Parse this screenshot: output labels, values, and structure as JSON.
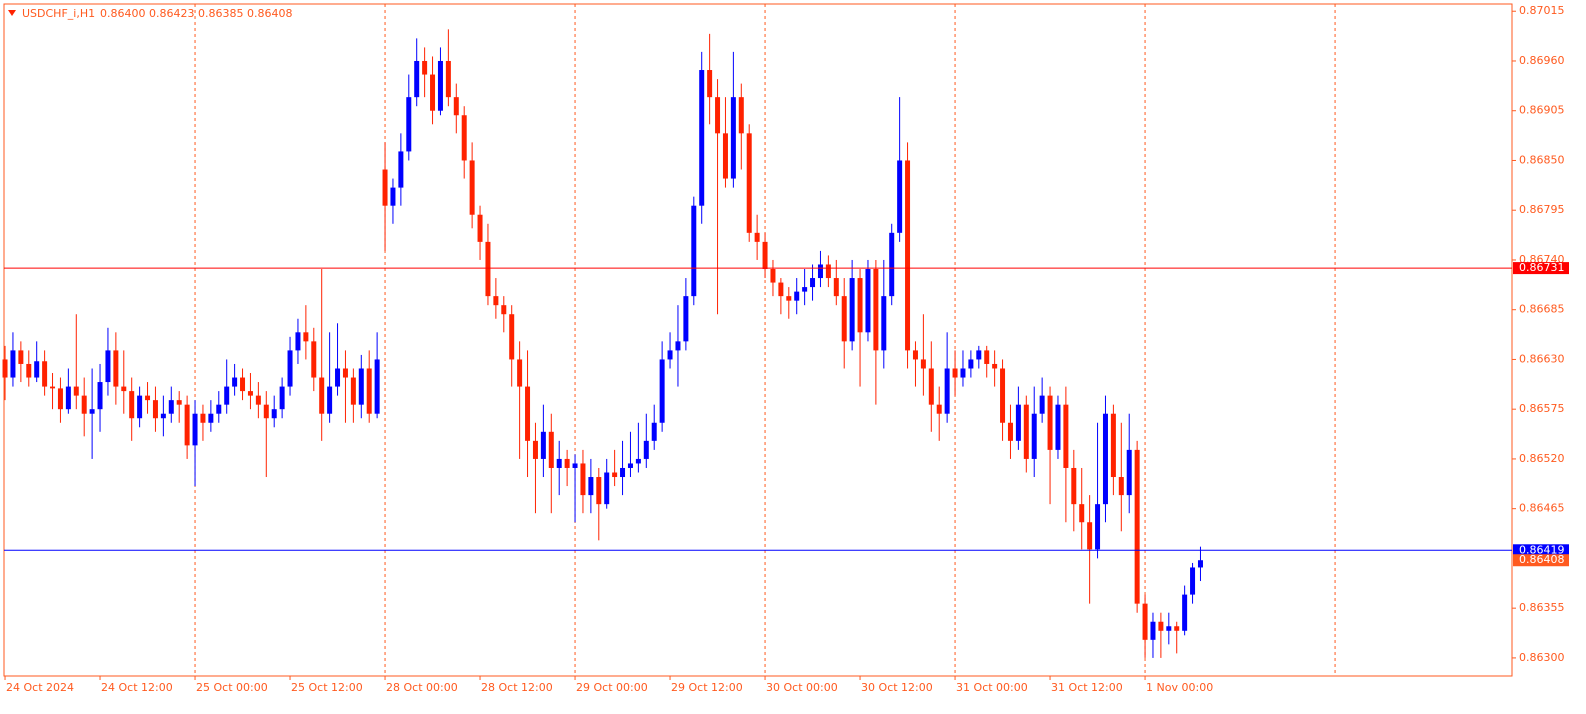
{
  "chart_data": {
    "type": "candlestick",
    "header": {
      "symbol": "USDCHF_i,H1",
      "quote": [
        "0.86400",
        "0.86423",
        "0.86385",
        "0.86408"
      ]
    },
    "up_color": "#0000ff",
    "down_color": "#ff2200",
    "axis_color": "#ff5a1f",
    "grid": true,
    "xlim": [
      -0.13,
      190.35
    ],
    "ylim": [
      0.8628,
      0.87023
    ],
    "xticks": [
      {
        "value": 0,
        "label": "24 Oct 2024"
      },
      {
        "value": 12,
        "label": "24 Oct 12:00"
      },
      {
        "value": 24,
        "label": "25 Oct 00:00"
      },
      {
        "value": 36,
        "label": "25 Oct 12:00"
      },
      {
        "value": 48,
        "label": "28 Oct 00:00"
      },
      {
        "value": 60,
        "label": "28 Oct 12:00"
      },
      {
        "value": 72,
        "label": "29 Oct 00:00"
      },
      {
        "value": 84,
        "label": "29 Oct 12:00"
      },
      {
        "value": 96,
        "label": "30 Oct 00:00"
      },
      {
        "value": 108,
        "label": "30 Oct 12:00"
      },
      {
        "value": 120,
        "label": "31 Oct 00:00"
      },
      {
        "value": 132,
        "label": "31 Oct 12:00"
      },
      {
        "value": 144,
        "label": "1 Nov 00:00"
      }
    ],
    "xgrid": [
      24,
      48,
      72,
      96,
      120,
      144,
      168
    ],
    "yticks": [
      {
        "value": 0.87015,
        "label": "0.87015"
      },
      {
        "value": 0.8696,
        "label": "0.86960"
      },
      {
        "value": 0.86905,
        "label": "0.86905"
      },
      {
        "value": 0.8685,
        "label": "0.86850"
      },
      {
        "value": 0.86795,
        "label": "0.86795"
      },
      {
        "value": 0.8674,
        "label": "0.86740"
      },
      {
        "value": 0.86685,
        "label": "0.86685"
      },
      {
        "value": 0.8663,
        "label": "0.86630"
      },
      {
        "value": 0.86575,
        "label": "0.86575"
      },
      {
        "value": 0.8652,
        "label": "0.86520"
      },
      {
        "value": 0.86465,
        "label": "0.86465"
      },
      {
        "value": 0.86355,
        "label": "0.86355"
      },
      {
        "value": 0.863,
        "label": "0.86300"
      }
    ],
    "hlines": [
      {
        "value": 0.86731,
        "label": "0.86731",
        "color": "#ff0000"
      },
      {
        "value": 0.86419,
        "label": "0.86419",
        "color": "#0000ff"
      }
    ],
    "price_marker": {
      "value": 0.86408,
      "label": "0.86408",
      "color": "#ff5a1f"
    },
    "open": [
      0.8663,
      0.8661,
      0.8664,
      0.86625,
      0.8661,
      0.86628,
      0.866,
      0.86598,
      0.86575,
      0.866,
      0.8659,
      0.8657,
      0.86575,
      0.86605,
      0.8664,
      0.866,
      0.86595,
      0.86565,
      0.8659,
      0.86585,
      0.86565,
      0.8657,
      0.86585,
      0.8658,
      0.86535,
      0.8657,
      0.8656,
      0.8657,
      0.8658,
      0.866,
      0.8661,
      0.86595,
      0.8659,
      0.8658,
      0.86565,
      0.86575,
      0.866,
      0.8664,
      0.8666,
      0.8665,
      0.8661,
      0.8657,
      0.866,
      0.8662,
      0.8661,
      0.8658,
      0.8662,
      0.8657,
      0.8684,
      0.868,
      0.8682,
      0.8686,
      0.8692,
      0.8696,
      0.86945,
      0.86905,
      0.8696,
      0.8692,
      0.869,
      0.8685,
      0.8679,
      0.8676,
      0.867,
      0.8669,
      0.8668,
      0.8663,
      0.866,
      0.8654,
      0.8652,
      0.8655,
      0.8651,
      0.8652,
      0.8651,
      0.86515,
      0.8648,
      0.865,
      0.8647,
      0.86505,
      0.865,
      0.8651,
      0.86515,
      0.8652,
      0.8654,
      0.8656,
      0.8663,
      0.8664,
      0.8665,
      0.867,
      0.868,
      0.8695,
      0.8692,
      0.8688,
      0.8683,
      0.8692,
      0.8688,
      0.8677,
      0.8676,
      0.8673,
      0.86715,
      0.867,
      0.86695,
      0.86705,
      0.8671,
      0.8672,
      0.86735,
      0.8672,
      0.867,
      0.8665,
      0.8672,
      0.8666,
      0.8673,
      0.8664,
      0.867,
      0.8677,
      0.8685,
      0.8664,
      0.8663,
      0.8662,
      0.8658,
      0.8657,
      0.8662,
      0.8661,
      0.8662,
      0.8663,
      0.8664,
      0.86625,
      0.8662,
      0.8656,
      0.8654,
      0.8658,
      0.8652,
      0.8657,
      0.8659,
      0.8653,
      0.8658,
      0.8651,
      0.8647,
      0.8645,
      0.8642,
      0.8647,
      0.8657,
      0.865,
      0.8648,
      0.8653,
      0.8636,
      0.8632,
      0.8634,
      0.8633,
      0.86335,
      0.8633,
      0.8637,
      0.864
    ],
    "high": [
      0.86645,
      0.8666,
      0.8665,
      0.8664,
      0.8665,
      0.8664,
      0.86615,
      0.8661,
      0.8662,
      0.8668,
      0.8661,
      0.8662,
      0.86625,
      0.86665,
      0.8666,
      0.8664,
      0.8661,
      0.866,
      0.86605,
      0.866,
      0.8659,
      0.866,
      0.86595,
      0.8659,
      0.86585,
      0.8658,
      0.86585,
      0.86595,
      0.8663,
      0.86625,
      0.8662,
      0.86615,
      0.86605,
      0.86595,
      0.8659,
      0.8661,
      0.86655,
      0.86675,
      0.8669,
      0.86665,
      0.8673,
      0.8666,
      0.8667,
      0.8664,
      0.8662,
      0.86635,
      0.8664,
      0.8666,
      0.8687,
      0.8683,
      0.8688,
      0.86945,
      0.86985,
      0.86975,
      0.86965,
      0.86975,
      0.86995,
      0.86935,
      0.8691,
      0.8687,
      0.868,
      0.8678,
      0.8672,
      0.867,
      0.8669,
      0.8665,
      0.8664,
      0.8656,
      0.8658,
      0.8657,
      0.8654,
      0.8653,
      0.86525,
      0.8653,
      0.8652,
      0.8651,
      0.8652,
      0.8653,
      0.8654,
      0.8655,
      0.8656,
      0.8657,
      0.8658,
      0.8665,
      0.8666,
      0.8669,
      0.8672,
      0.8681,
      0.8697,
      0.8699,
      0.8694,
      0.8692,
      0.8697,
      0.86935,
      0.8689,
      0.8679,
      0.8677,
      0.8674,
      0.8672,
      0.8671,
      0.8672,
      0.8673,
      0.86735,
      0.8675,
      0.86745,
      0.8674,
      0.8672,
      0.8674,
      0.8673,
      0.8674,
      0.8674,
      0.8674,
      0.8678,
      0.8692,
      0.8687,
      0.8665,
      0.8668,
      0.8665,
      0.866,
      0.8666,
      0.8664,
      0.8664,
      0.8664,
      0.86645,
      0.86645,
      0.8664,
      0.8663,
      0.8658,
      0.866,
      0.8659,
      0.866,
      0.8661,
      0.866,
      0.8659,
      0.866,
      0.8653,
      0.8651,
      0.8648,
      0.8656,
      0.8659,
      0.8658,
      0.8656,
      0.8657,
      0.8654,
      0.8637,
      0.8635,
      0.8635,
      0.8635,
      0.8634,
      0.8638,
      0.86405,
      0.86423
    ],
    "low": [
      0.86585,
      0.866,
      0.86605,
      0.866,
      0.86605,
      0.8659,
      0.86575,
      0.8656,
      0.8657,
      0.86575,
      0.86545,
      0.8652,
      0.8655,
      0.8659,
      0.8658,
      0.8657,
      0.8654,
      0.86555,
      0.8657,
      0.8655,
      0.86545,
      0.8656,
      0.8656,
      0.8652,
      0.8649,
      0.8654,
      0.8655,
      0.8656,
      0.8657,
      0.8659,
      0.86585,
      0.86575,
      0.86565,
      0.865,
      0.86555,
      0.86565,
      0.8659,
      0.86625,
      0.8663,
      0.86595,
      0.8654,
      0.8656,
      0.8659,
      0.8656,
      0.8656,
      0.86565,
      0.8656,
      0.86565,
      0.8675,
      0.8678,
      0.868,
      0.8685,
      0.8691,
      0.8692,
      0.8689,
      0.869,
      0.8691,
      0.8688,
      0.8683,
      0.86775,
      0.8674,
      0.8669,
      0.86675,
      0.8666,
      0.866,
      0.8652,
      0.865,
      0.8646,
      0.865,
      0.8646,
      0.8648,
      0.8649,
      0.8645,
      0.8646,
      0.8646,
      0.8643,
      0.86465,
      0.8649,
      0.8648,
      0.865,
      0.86505,
      0.8651,
      0.8653,
      0.8655,
      0.8662,
      0.866,
      0.8664,
      0.8669,
      0.8678,
      0.8689,
      0.8668,
      0.8682,
      0.8682,
      0.8684,
      0.8676,
      0.8674,
      0.8672,
      0.867,
      0.8668,
      0.86675,
      0.8668,
      0.8669,
      0.86695,
      0.8671,
      0.8671,
      0.8669,
      0.8662,
      0.8664,
      0.866,
      0.8665,
      0.8658,
      0.8662,
      0.8669,
      0.8676,
      0.8662,
      0.866,
      0.8659,
      0.8655,
      0.8654,
      0.8656,
      0.8659,
      0.866,
      0.8661,
      0.8662,
      0.8661,
      0.866,
      0.8654,
      0.8652,
      0.8653,
      0.86505,
      0.865,
      0.8656,
      0.8647,
      0.8652,
      0.8645,
      0.8644,
      0.8642,
      0.8636,
      0.8641,
      0.8645,
      0.8648,
      0.8644,
      0.8646,
      0.8635,
      0.863,
      0.863,
      0.863,
      0.86315,
      0.86305,
      0.86325,
      0.8636,
      0.86385
    ],
    "close": [
      0.8661,
      0.8664,
      0.86625,
      0.8661,
      0.86628,
      0.866,
      0.86598,
      0.86575,
      0.866,
      0.8659,
      0.8657,
      0.86575,
      0.86605,
      0.8664,
      0.866,
      0.86595,
      0.86565,
      0.8659,
      0.86585,
      0.86565,
      0.8657,
      0.86585,
      0.8658,
      0.86535,
      0.8657,
      0.8656,
      0.8657,
      0.8658,
      0.866,
      0.8661,
      0.86595,
      0.8659,
      0.8658,
      0.86565,
      0.86575,
      0.866,
      0.8664,
      0.8666,
      0.8665,
      0.8661,
      0.8657,
      0.866,
      0.8662,
      0.8661,
      0.8658,
      0.8662,
      0.8657,
      0.8663,
      0.868,
      0.8682,
      0.8686,
      0.8692,
      0.8696,
      0.86945,
      0.86905,
      0.8696,
      0.8692,
      0.869,
      0.8685,
      0.8679,
      0.8676,
      0.867,
      0.8669,
      0.8668,
      0.8663,
      0.866,
      0.8654,
      0.8652,
      0.8655,
      0.8651,
      0.8652,
      0.8651,
      0.86515,
      0.8648,
      0.865,
      0.8647,
      0.86505,
      0.865,
      0.8651,
      0.86515,
      0.8652,
      0.8654,
      0.8656,
      0.8663,
      0.8664,
      0.8665,
      0.867,
      0.868,
      0.8695,
      0.8692,
      0.8688,
      0.8683,
      0.8692,
      0.8688,
      0.8677,
      0.8676,
      0.8673,
      0.86715,
      0.867,
      0.86695,
      0.86705,
      0.8671,
      0.8672,
      0.86735,
      0.8672,
      0.867,
      0.8665,
      0.8672,
      0.8666,
      0.8673,
      0.8664,
      0.867,
      0.8677,
      0.8685,
      0.8664,
      0.8663,
      0.8662,
      0.8658,
      0.8657,
      0.8662,
      0.8661,
      0.8662,
      0.8663,
      0.8664,
      0.86625,
      0.8662,
      0.8656,
      0.8654,
      0.8658,
      0.8652,
      0.8657,
      0.8659,
      0.8653,
      0.8658,
      0.8651,
      0.8647,
      0.8645,
      0.8642,
      0.8647,
      0.8657,
      0.865,
      0.8648,
      0.8653,
      0.8636,
      0.8632,
      0.8634,
      0.8633,
      0.86335,
      0.8633,
      0.8637,
      0.864,
      0.86408
    ]
  }
}
